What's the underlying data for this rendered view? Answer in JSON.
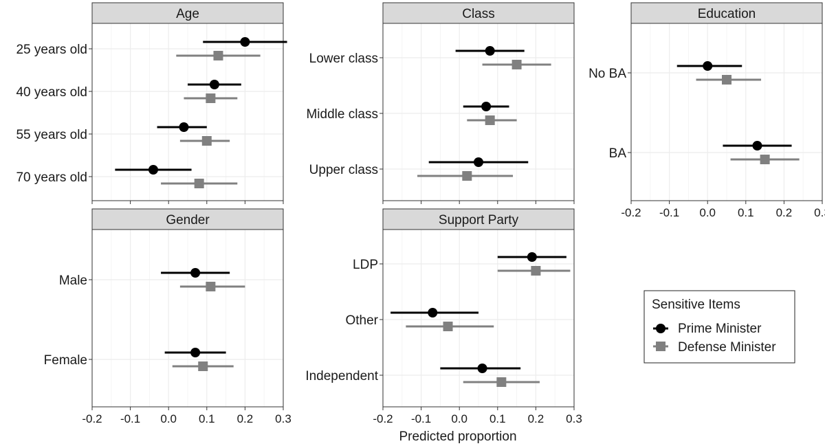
{
  "chart_data": {
    "type": "dot-range",
    "xlabel": "Predicted proportion",
    "xlim": [
      -0.2,
      0.3
    ],
    "xticks": [
      "-0.2",
      "-0.1",
      "0.0",
      "0.1",
      "0.2",
      "0.3"
    ],
    "series": [
      {
        "name": "Prime Minister",
        "color": "#000000",
        "marker": "circle"
      },
      {
        "name": "Defense Minister",
        "color": "#808080",
        "marker": "square"
      }
    ],
    "legend": {
      "title": "Sensitive Items",
      "placement": "right"
    },
    "panels": [
      {
        "title": "Age",
        "categories": [
          "25 years old",
          "40 years old",
          "55 years old",
          "70 years old"
        ],
        "points": [
          {
            "category": "25 years old",
            "series": "Prime Minister",
            "estimate": 0.2,
            "low": 0.09,
            "high": 0.31
          },
          {
            "category": "25 years old",
            "series": "Defense Minister",
            "estimate": 0.13,
            "low": 0.02,
            "high": 0.24
          },
          {
            "category": "40 years old",
            "series": "Prime Minister",
            "estimate": 0.12,
            "low": 0.05,
            "high": 0.19
          },
          {
            "category": "40 years old",
            "series": "Defense Minister",
            "estimate": 0.11,
            "low": 0.04,
            "high": 0.18
          },
          {
            "category": "55 years old",
            "series": "Prime Minister",
            "estimate": 0.04,
            "low": -0.03,
            "high": 0.1
          },
          {
            "category": "55 years old",
            "series": "Defense Minister",
            "estimate": 0.1,
            "low": 0.03,
            "high": 0.16
          },
          {
            "category": "70 years old",
            "series": "Prime Minister",
            "estimate": -0.04,
            "low": -0.14,
            "high": 0.06
          },
          {
            "category": "70 years old",
            "series": "Defense Minister",
            "estimate": 0.08,
            "low": -0.02,
            "high": 0.18
          }
        ]
      },
      {
        "title": "Class",
        "categories": [
          "Lower class",
          "Middle class",
          "Upper class"
        ],
        "points": [
          {
            "category": "Lower class",
            "series": "Prime Minister",
            "estimate": 0.08,
            "low": -0.01,
            "high": 0.17
          },
          {
            "category": "Lower class",
            "series": "Defense Minister",
            "estimate": 0.15,
            "low": 0.06,
            "high": 0.24
          },
          {
            "category": "Middle class",
            "series": "Prime Minister",
            "estimate": 0.07,
            "low": 0.01,
            "high": 0.13
          },
          {
            "category": "Middle class",
            "series": "Defense Minister",
            "estimate": 0.08,
            "low": 0.02,
            "high": 0.15
          },
          {
            "category": "Upper class",
            "series": "Prime Minister",
            "estimate": 0.05,
            "low": -0.08,
            "high": 0.18
          },
          {
            "category": "Upper class",
            "series": "Defense Minister",
            "estimate": 0.02,
            "low": -0.11,
            "high": 0.14
          }
        ]
      },
      {
        "title": "Education",
        "categories": [
          "No BA",
          "BA"
        ],
        "points": [
          {
            "category": "No BA",
            "series": "Prime Minister",
            "estimate": 0.0,
            "low": -0.08,
            "high": 0.09
          },
          {
            "category": "No BA",
            "series": "Defense Minister",
            "estimate": 0.05,
            "low": -0.03,
            "high": 0.14
          },
          {
            "category": "BA",
            "series": "Prime Minister",
            "estimate": 0.13,
            "low": 0.04,
            "high": 0.22
          },
          {
            "category": "BA",
            "series": "Defense Minister",
            "estimate": 0.15,
            "low": 0.06,
            "high": 0.24
          }
        ]
      },
      {
        "title": "Gender",
        "categories": [
          "Male",
          "Female"
        ],
        "points": [
          {
            "category": "Male",
            "series": "Prime Minister",
            "estimate": 0.07,
            "low": -0.02,
            "high": 0.16
          },
          {
            "category": "Male",
            "series": "Defense Minister",
            "estimate": 0.11,
            "low": 0.03,
            "high": 0.2
          },
          {
            "category": "Female",
            "series": "Prime Minister",
            "estimate": 0.07,
            "low": -0.01,
            "high": 0.15
          },
          {
            "category": "Female",
            "series": "Defense Minister",
            "estimate": 0.09,
            "low": 0.01,
            "high": 0.17
          }
        ]
      },
      {
        "title": "Support Party",
        "categories": [
          "LDP",
          "Other",
          "Independent"
        ],
        "points": [
          {
            "category": "LDP",
            "series": "Prime Minister",
            "estimate": 0.19,
            "low": 0.1,
            "high": 0.28
          },
          {
            "category": "LDP",
            "series": "Defense Minister",
            "estimate": 0.2,
            "low": 0.1,
            "high": 0.29
          },
          {
            "category": "Other",
            "series": "Prime Minister",
            "estimate": -0.07,
            "low": -0.18,
            "high": 0.05
          },
          {
            "category": "Other",
            "series": "Defense Minister",
            "estimate": -0.03,
            "low": -0.14,
            "high": 0.09
          },
          {
            "category": "Independent",
            "series": "Prime Minister",
            "estimate": 0.06,
            "low": -0.05,
            "high": 0.16
          },
          {
            "category": "Independent",
            "series": "Defense Minister",
            "estimate": 0.11,
            "low": 0.01,
            "high": 0.21
          }
        ]
      }
    ]
  }
}
